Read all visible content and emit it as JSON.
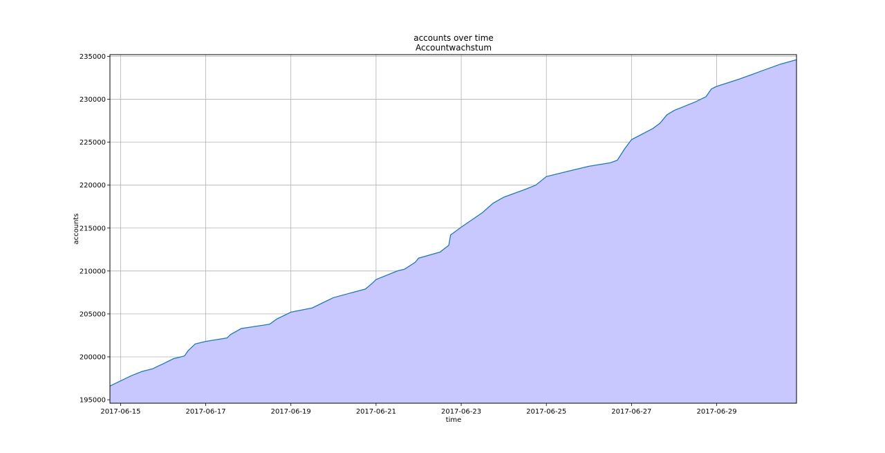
{
  "chart_data": {
    "type": "area",
    "title": "accounts over time",
    "subtitle": "Accountwachstum",
    "xlabel": "time",
    "ylabel": "accounts",
    "xlim": [
      "2017-06-14T18:00",
      "2017-06-30T21:00"
    ],
    "ylim": [
      194600,
      235200
    ],
    "grid": true,
    "colors": {
      "line": "#1f77b4",
      "fill": "#c8c8ff",
      "grid": "#b0b0b0"
    },
    "x_ticks": [
      "2017-06-15",
      "2017-06-17",
      "2017-06-19",
      "2017-06-21",
      "2017-06-23",
      "2017-06-25",
      "2017-06-27",
      "2017-06-29"
    ],
    "y_ticks": [
      195000,
      200000,
      205000,
      210000,
      215000,
      220000,
      225000,
      230000,
      235000
    ],
    "series": [
      {
        "x": [
          "2017-06-14T18:00",
          "2017-06-15T00:00",
          "2017-06-15T06:00",
          "2017-06-15T12:00",
          "2017-06-15T18:00",
          "2017-06-15T21:00",
          "2017-06-16T00:00",
          "2017-06-16T06:00",
          "2017-06-16T12:00",
          "2017-06-16T14:00",
          "2017-06-16T18:00",
          "2017-06-17T00:00",
          "2017-06-17T12:00",
          "2017-06-17T14:00",
          "2017-06-17T20:00",
          "2017-06-18T12:00",
          "2017-06-18T16:00",
          "2017-06-19T00:00",
          "2017-06-19T12:00",
          "2017-06-19T17:00",
          "2017-06-20T00:00",
          "2017-06-20T18:00",
          "2017-06-20T22:00",
          "2017-06-21T00:00",
          "2017-06-21T12:00",
          "2017-06-21T16:00",
          "2017-06-21T22:00",
          "2017-06-22T00:00",
          "2017-06-22T12:00",
          "2017-06-22T17:00",
          "2017-06-22T18:00",
          "2017-06-23T00:00",
          "2017-06-23T12:00",
          "2017-06-23T18:00",
          "2017-06-24T00:00",
          "2017-06-24T12:00",
          "2017-06-24T18:00",
          "2017-06-25T00:00",
          "2017-06-25T12:00",
          "2017-06-26T00:00",
          "2017-06-26T12:00",
          "2017-06-26T16:00",
          "2017-06-26T20:00",
          "2017-06-27T00:00",
          "2017-06-27T12:00",
          "2017-06-27T16:00",
          "2017-06-27T20:00",
          "2017-06-28T00:00",
          "2017-06-28T12:00",
          "2017-06-28T18:00",
          "2017-06-28T21:00",
          "2017-06-29T00:00",
          "2017-06-29T12:00",
          "2017-06-29T20:00",
          "2017-06-30T00:00",
          "2017-06-30T12:00",
          "2017-06-30T21:00"
        ],
        "y": [
          196600,
          197200,
          197800,
          198300,
          198600,
          198900,
          199200,
          199800,
          200100,
          200700,
          201500,
          201800,
          202200,
          202600,
          203300,
          203800,
          204400,
          205200,
          205700,
          206200,
          206900,
          207900,
          208600,
          209000,
          210000,
          210200,
          211000,
          211500,
          212200,
          213000,
          214200,
          215100,
          216800,
          217900,
          218600,
          219500,
          220000,
          221000,
          221600,
          222200,
          222600,
          222900,
          224200,
          225300,
          226600,
          227200,
          228200,
          228700,
          229700,
          230300,
          231200,
          231500,
          232300,
          232900,
          233200,
          234100,
          234600
        ]
      }
    ]
  }
}
